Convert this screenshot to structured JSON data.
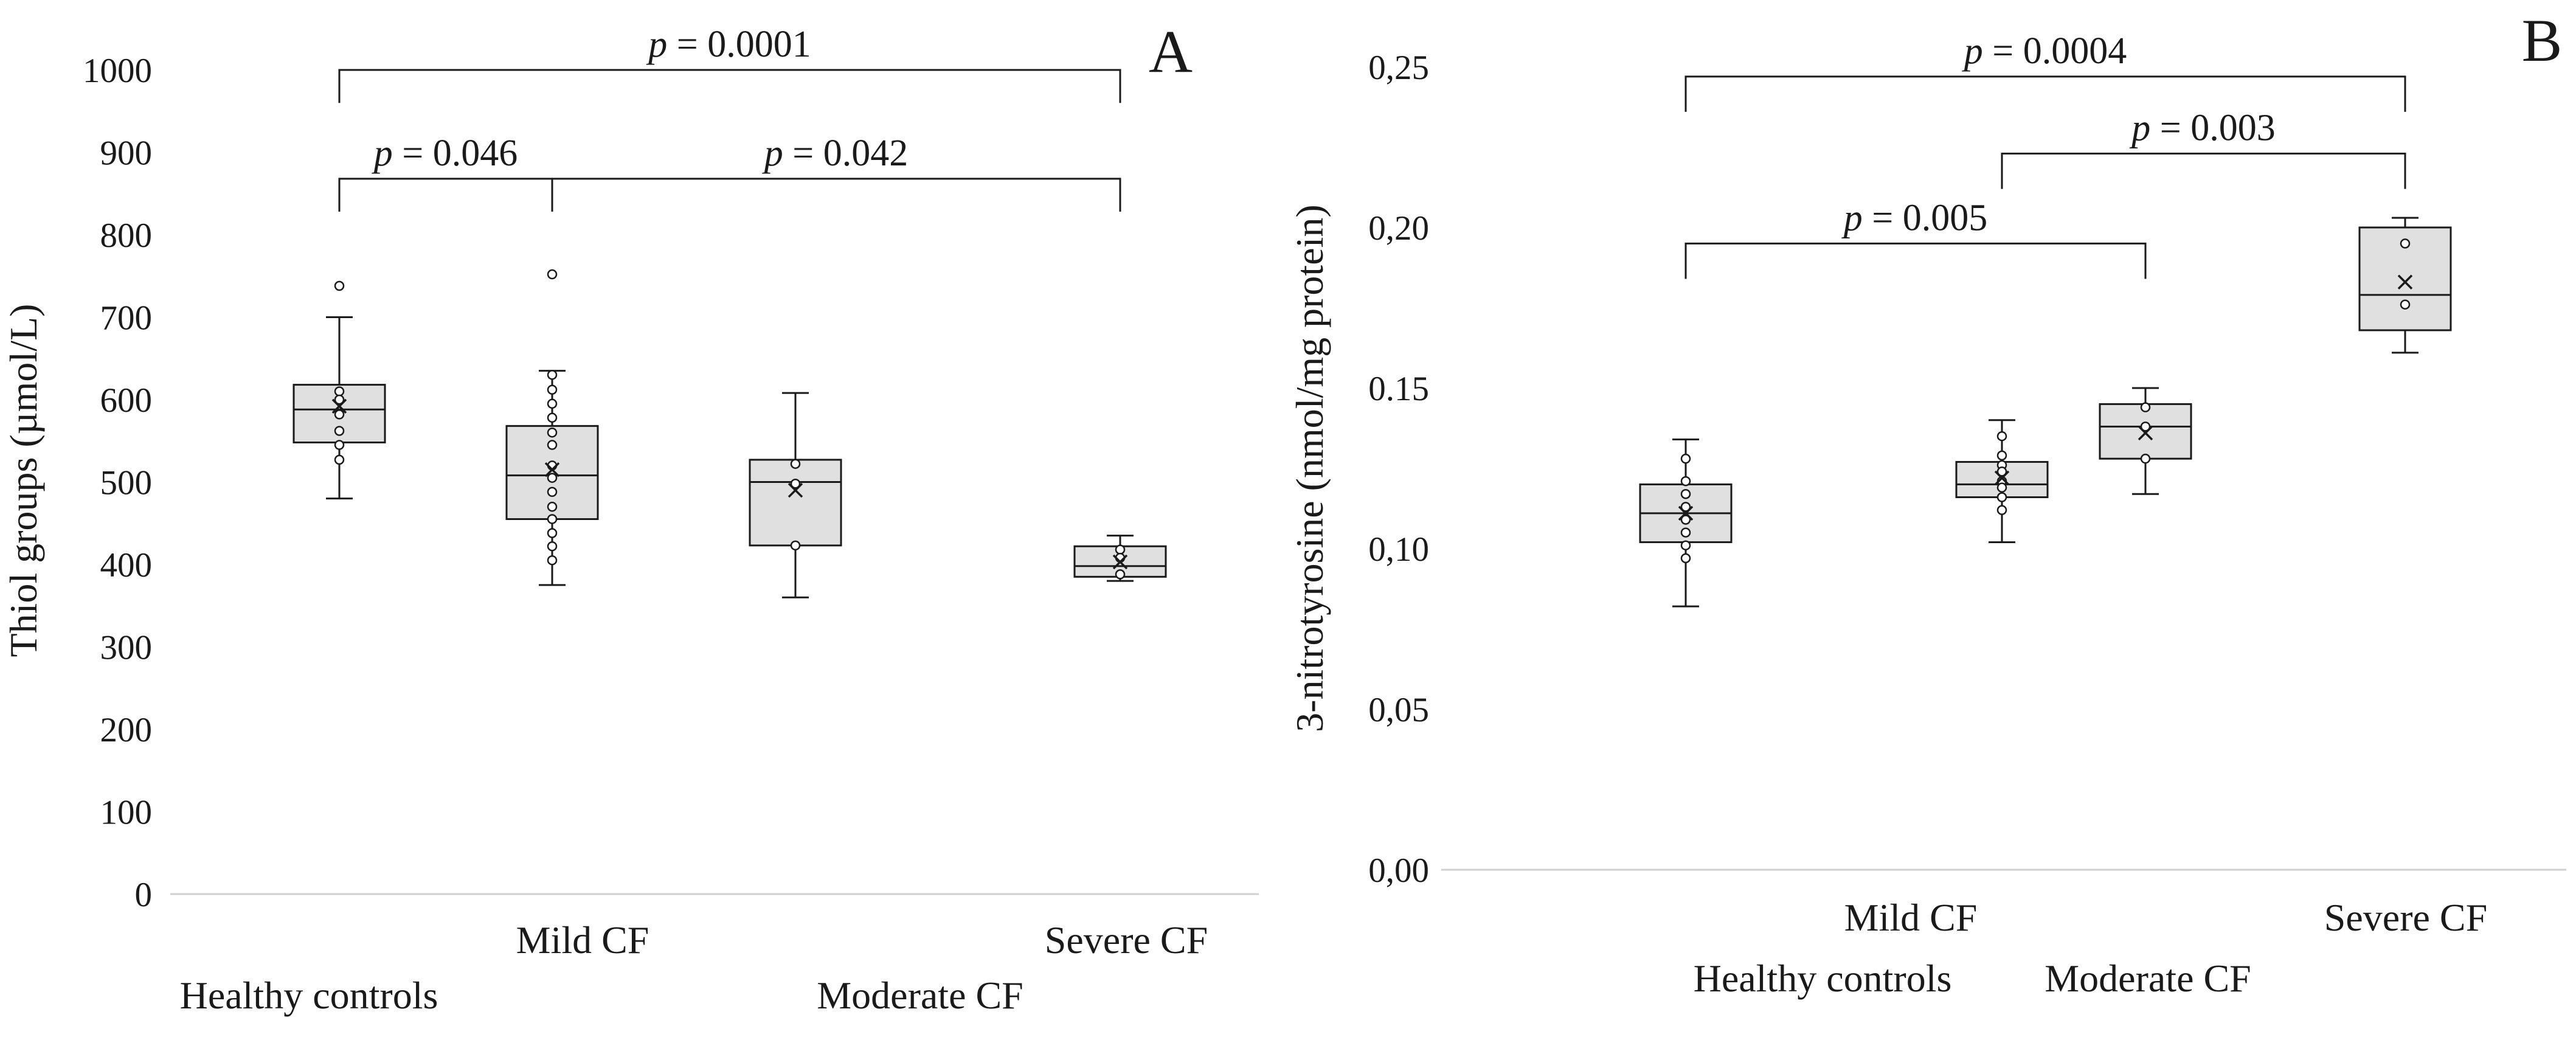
{
  "chart_data": [
    {
      "panel": "A",
      "type": "box",
      "ylabel": "Thiol groups (µmol/L)",
      "ylim": [
        0,
        1000
      ],
      "yticks": [
        0,
        100,
        200,
        300,
        400,
        500,
        600,
        700,
        800,
        900,
        1000
      ],
      "ytick_labels": [
        "0",
        "100",
        "200",
        "300",
        "400",
        "500",
        "600",
        "700",
        "800",
        "900",
        "1000"
      ],
      "categories": [
        "Healthy controls",
        "Mild CF",
        "Moderate CF",
        "Severe CF"
      ],
      "boxes": [
        {
          "name": "Healthy controls",
          "whisker_low": 480,
          "q1": 548,
          "median": 588,
          "q3": 618,
          "whisker_high": 700,
          "mean": 592,
          "points": [
            738,
            610,
            600,
            582,
            562,
            545,
            527
          ]
        },
        {
          "name": "Mild CF",
          "whisker_low": 375,
          "q1": 455,
          "median": 508,
          "q3": 568,
          "whisker_high": 635,
          "mean": 515,
          "points": [
            752,
            630,
            612,
            595,
            578,
            560,
            545,
            520,
            505,
            488,
            470,
            455,
            438,
            422,
            405
          ]
        },
        {
          "name": "Moderate CF",
          "whisker_low": 360,
          "q1": 423,
          "median": 500,
          "q3": 527,
          "whisker_high": 608,
          "mean": 490,
          "points": [
            522,
            498,
            423
          ]
        },
        {
          "name": "Severe CF",
          "whisker_low": 380,
          "q1": 385,
          "median": 398,
          "q3": 422,
          "whisker_high": 435,
          "mean": 403,
          "points": [
            418,
            408,
            388
          ]
        }
      ],
      "comparisons": [
        {
          "from": "Healthy controls",
          "to": "Severe CF",
          "level": 1000,
          "drop": 960,
          "p_prefix": "p",
          "p_text": " = 0.0001"
        },
        {
          "from": "Healthy controls",
          "to": "Mild CF",
          "level": 868,
          "drop": 828,
          "p_prefix": "p",
          "p_text": " = 0.046"
        },
        {
          "from": "Mild CF",
          "to": "Severe CF",
          "level": 868,
          "drop": 828,
          "p_prefix": "p",
          "p_text": " = 0.042"
        }
      ]
    },
    {
      "panel": "B",
      "type": "box",
      "ylabel": "3-nitrotyrosine (nmol/mg protein)",
      "ylim": [
        0,
        0.25
      ],
      "yticks": [
        0,
        0.05,
        0.1,
        0.15,
        0.2,
        0.25
      ],
      "ytick_labels": [
        "0,00",
        "0,05",
        "0,10",
        "0.15",
        "0,20",
        "0,25"
      ],
      "categories": [
        "Healthy controls",
        "Mild CF",
        "Moderate CF",
        "Severe CF"
      ],
      "boxes": [
        {
          "name": "Healthy controls",
          "whisker_low": 0.082,
          "q1": 0.102,
          "median": 0.111,
          "q3": 0.12,
          "whisker_high": 0.134,
          "mean": 0.111,
          "points": [
            0.128,
            0.121,
            0.117,
            0.113,
            0.109,
            0.105,
            0.101,
            0.097
          ]
        },
        {
          "name": "Mild CF",
          "whisker_low": 0.102,
          "q1": 0.116,
          "median": 0.12,
          "q3": 0.127,
          "whisker_high": 0.14,
          "mean": 0.122,
          "points": [
            0.135,
            0.129,
            0.126,
            0.124,
            0.121,
            0.119,
            0.116,
            0.112
          ]
        },
        {
          "name": "Moderate CF",
          "whisker_low": 0.117,
          "q1": 0.128,
          "median": 0.138,
          "q3": 0.145,
          "whisker_high": 0.15,
          "mean": 0.136,
          "points": [
            0.144,
            0.138,
            0.128
          ]
        },
        {
          "name": "Severe CF",
          "whisker_low": 0.161,
          "q1": 0.168,
          "median": 0.179,
          "q3": 0.2,
          "whisker_high": 0.203,
          "mean": 0.183,
          "points": [
            0.195,
            0.176
          ]
        }
      ],
      "comparisons": [
        {
          "from": "Healthy controls",
          "to": "Severe CF",
          "level": 0.247,
          "drop": 0.236,
          "p_prefix": "p",
          "p_text": " = 0.0004"
        },
        {
          "from": "Mild CF",
          "to": "Severe CF",
          "level": 0.223,
          "drop": 0.212,
          "p_prefix": "p",
          "p_text": " = 0.003"
        },
        {
          "from": "Healthy controls",
          "to": "Moderate CF",
          "level": 0.195,
          "drop": 0.184,
          "p_prefix": "p",
          "p_text": " = 0.005"
        }
      ]
    }
  ]
}
